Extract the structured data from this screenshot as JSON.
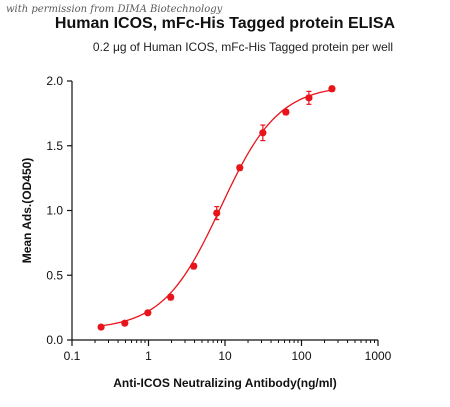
{
  "watermark": "with permission from DIMA Biotechnology",
  "chart_data": {
    "type": "scatter",
    "title": "Human ICOS,  mFc-His Tagged protein ELISA",
    "subtitle": "0.2 μg of Human ICOS, mFc-His Tagged protein per well",
    "xlabel": "Anti-ICOS Neutralizing Antibody(ng/ml)",
    "ylabel": "Mean Ads.(OD450)",
    "xscale": "log",
    "xlim": [
      0.1,
      1000
    ],
    "ylim": [
      0,
      2.0
    ],
    "x_ticks": [
      0.1,
      1,
      10,
      100,
      1000
    ],
    "x_tick_labels": [
      "0.1",
      "1",
      "10",
      "100",
      "1000"
    ],
    "y_ticks": [
      0,
      0.5,
      1.0,
      1.5,
      2.0
    ],
    "y_tick_labels": [
      "0.0",
      "0.5",
      "1.0",
      "1.5",
      "2.0"
    ],
    "grid": false,
    "legend": "none",
    "color": "#e8141a",
    "series": [
      {
        "x": [
          0.24,
          0.49,
          0.98,
          1.95,
          3.9,
          7.8,
          15.6,
          31.25,
          62.5,
          125,
          250
        ],
        "y": [
          0.1,
          0.13,
          0.21,
          0.33,
          0.57,
          0.98,
          1.33,
          1.6,
          1.76,
          1.87,
          1.94
        ],
        "error": [
          0.01,
          0.01,
          0.01,
          0.02,
          0.02,
          0.05,
          0.02,
          0.06,
          0.02,
          0.05,
          0.02
        ]
      }
    ],
    "fit": {
      "model": "4PL",
      "bottom": 0.08,
      "top": 1.97,
      "ec50": 8.8,
      "hill": 1.15,
      "xrange": [
        0.24,
        250
      ]
    }
  }
}
